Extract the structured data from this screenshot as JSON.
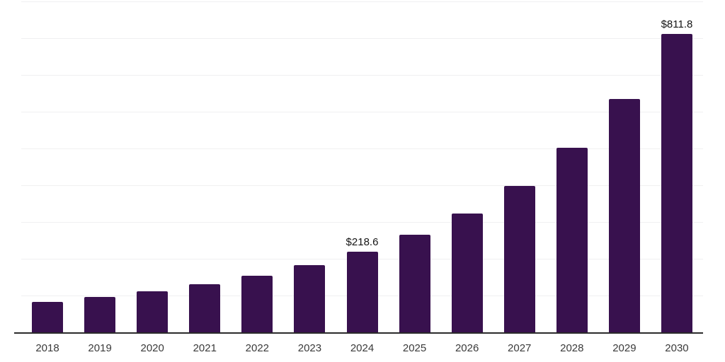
{
  "chart_data": {
    "type": "bar",
    "title": "",
    "categories": [
      "2018",
      "2019",
      "2020",
      "2021",
      "2022",
      "2023",
      "2024",
      "2025",
      "2026",
      "2027",
      "2028",
      "2029",
      "2030"
    ],
    "values": [
      83,
      96,
      112,
      131,
      154,
      183,
      218.6,
      266,
      324,
      399,
      501,
      635,
      811.8
    ],
    "labeled_points": [
      {
        "category": "2024",
        "text": "$218.6"
      },
      {
        "category": "2030",
        "text": "$811.8"
      }
    ],
    "xlabel": "",
    "ylabel": "",
    "ylim": [
      0,
      900
    ],
    "gridline_step": 100,
    "grid": "horizontal",
    "legend": "none",
    "y_axis_labels": "hidden",
    "colors": {
      "bar": "#38114E",
      "gridline": "#f0f0f1",
      "axis_line": "#2b2b2b",
      "x_tick_label": "#3a3a3a",
      "data_label": "#141414",
      "background": "#ffffff"
    }
  }
}
